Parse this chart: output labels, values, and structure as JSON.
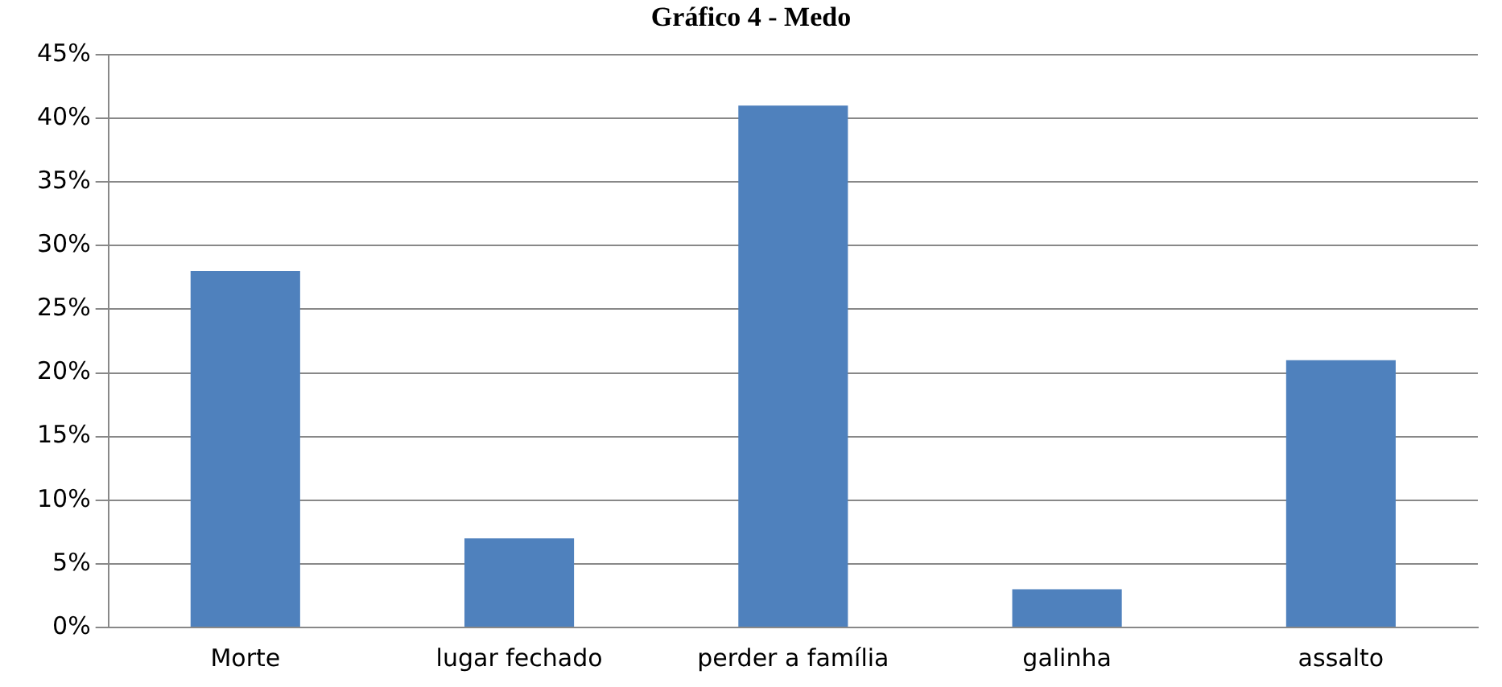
{
  "chart_data": {
    "type": "bar",
    "title": "Gráfico 4 - Medo",
    "categories": [
      "Morte",
      "lugar fechado",
      "perder a família",
      "galinha",
      "assalto"
    ],
    "values": [
      28,
      7,
      41,
      3,
      21
    ],
    "color": "#4f81bd",
    "ylim": [
      0,
      45
    ],
    "yticks": [
      {
        "value": 0,
        "label": "0%"
      },
      {
        "value": 5,
        "label": "5%"
      },
      {
        "value": 10,
        "label": "10%"
      },
      {
        "value": 15,
        "label": "15%"
      },
      {
        "value": 20,
        "label": "20%"
      },
      {
        "value": 25,
        "label": "25%"
      },
      {
        "value": 30,
        "label": "30%"
      },
      {
        "value": 35,
        "label": "35%"
      },
      {
        "value": 40,
        "label": "40%"
      },
      {
        "value": 45,
        "label": "45%"
      }
    ],
    "grid": "y",
    "legend": false
  }
}
